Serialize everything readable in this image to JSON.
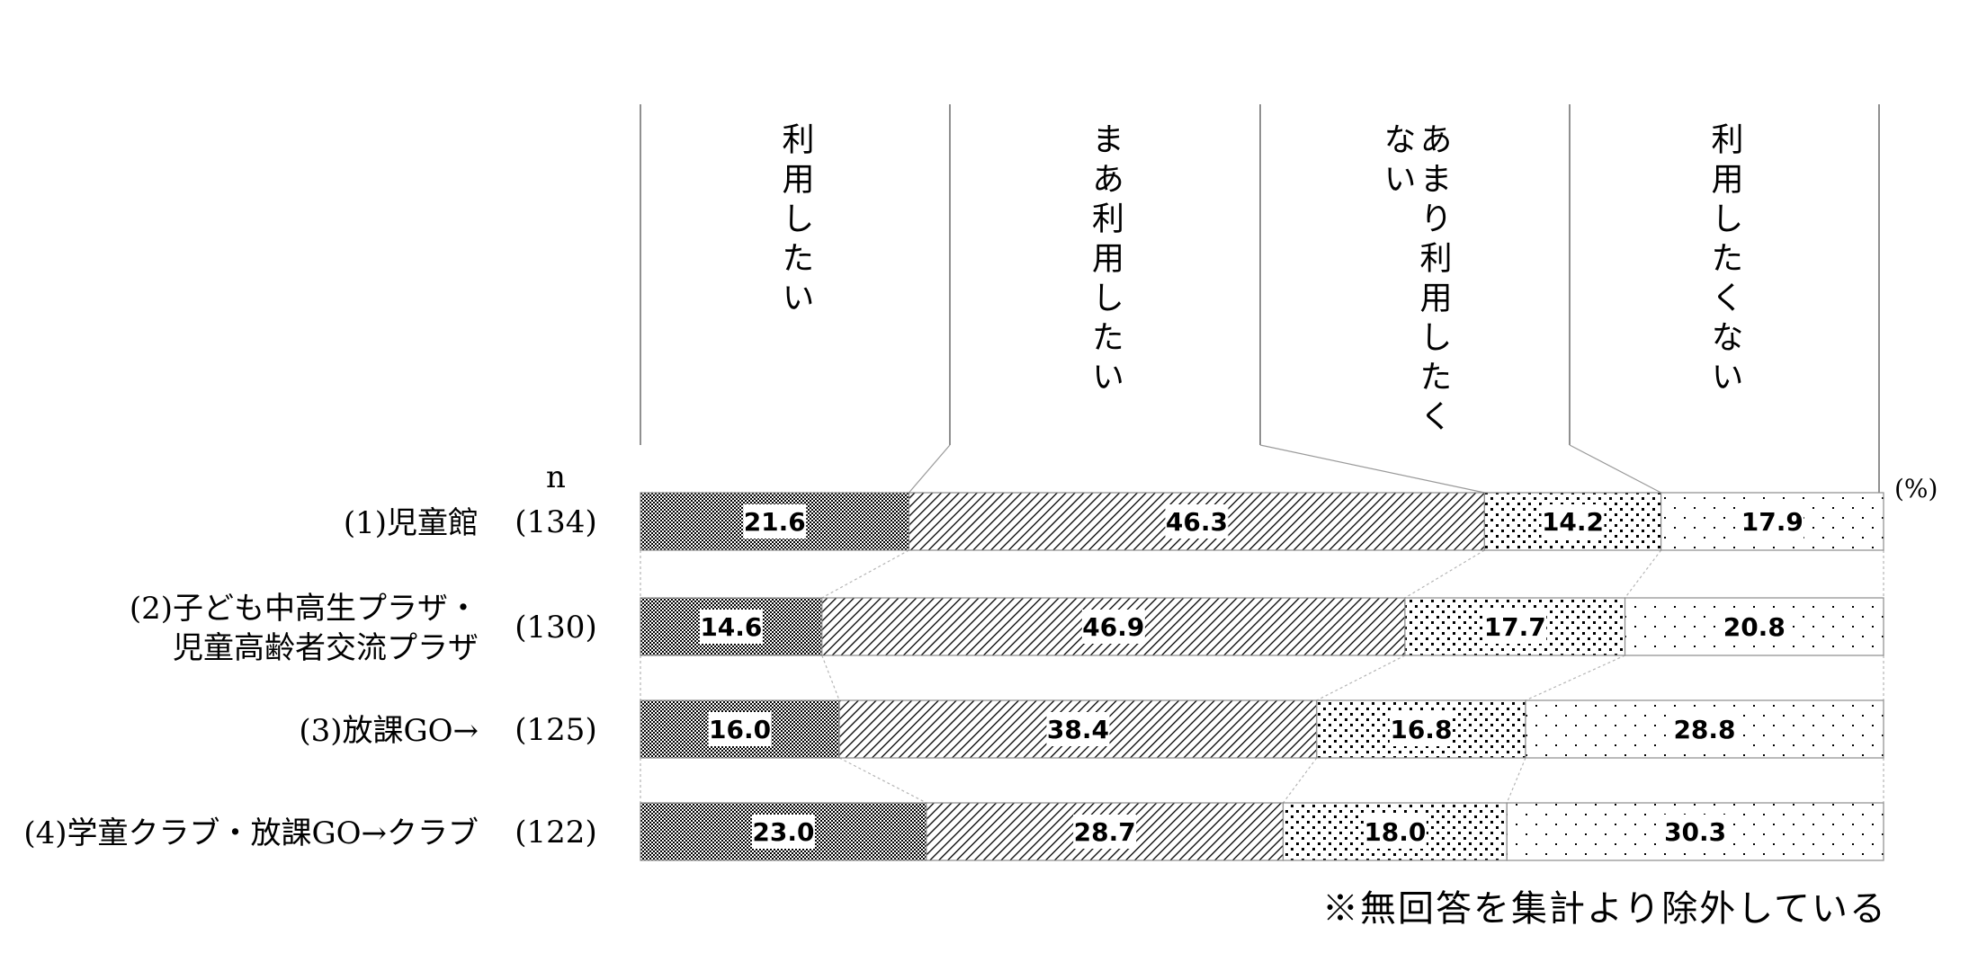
{
  "chart_data": {
    "type": "bar",
    "stacked": true,
    "orientation": "horizontal",
    "unit_label": "(%)",
    "n_header": "n",
    "categories": [
      "(1)児童館",
      "(2)子ども中高生プラザ・児童高齢者交流プラザ",
      "(3)放課GO→",
      "(4)学童クラブ・放課GO→クラブ"
    ],
    "category_lines": [
      [
        "(1)児童館"
      ],
      [
        "(2)子ども中高生プラザ・",
        "児童高齢者交流プラザ"
      ],
      [
        "(3)放課GO→"
      ],
      [
        "(4)学童クラブ・放課GO→クラブ"
      ]
    ],
    "n_values": [
      "(134)",
      "(130)",
      "(125)",
      "(122)"
    ],
    "series": [
      {
        "name": "利用したい",
        "label_lines": [
          "利用したい"
        ],
        "values": [
          21.6,
          14.6,
          16.0,
          23.0
        ]
      },
      {
        "name": "まあ利用したい",
        "label_lines": [
          "まあ利用したい"
        ],
        "values": [
          46.3,
          46.9,
          38.4,
          28.7
        ]
      },
      {
        "name": "あまり利用したくない",
        "label_lines": [
          "あまり利用したく",
          "ない"
        ],
        "values": [
          14.2,
          17.7,
          16.8,
          18.0
        ]
      },
      {
        "name": "利用したくない",
        "label_lines": [
          "利用したくない"
        ],
        "values": [
          17.9,
          20.8,
          28.8,
          30.3
        ]
      }
    ],
    "xlim": [
      0,
      100
    ],
    "legend_placement": "top"
  },
  "footnote": "※無回答を集計より除外している",
  "colors": {
    "ink": "#000000",
    "bar_edge": "#8c8c8c",
    "connector": "#b0b0b0",
    "label_bg": "#ffffff"
  }
}
